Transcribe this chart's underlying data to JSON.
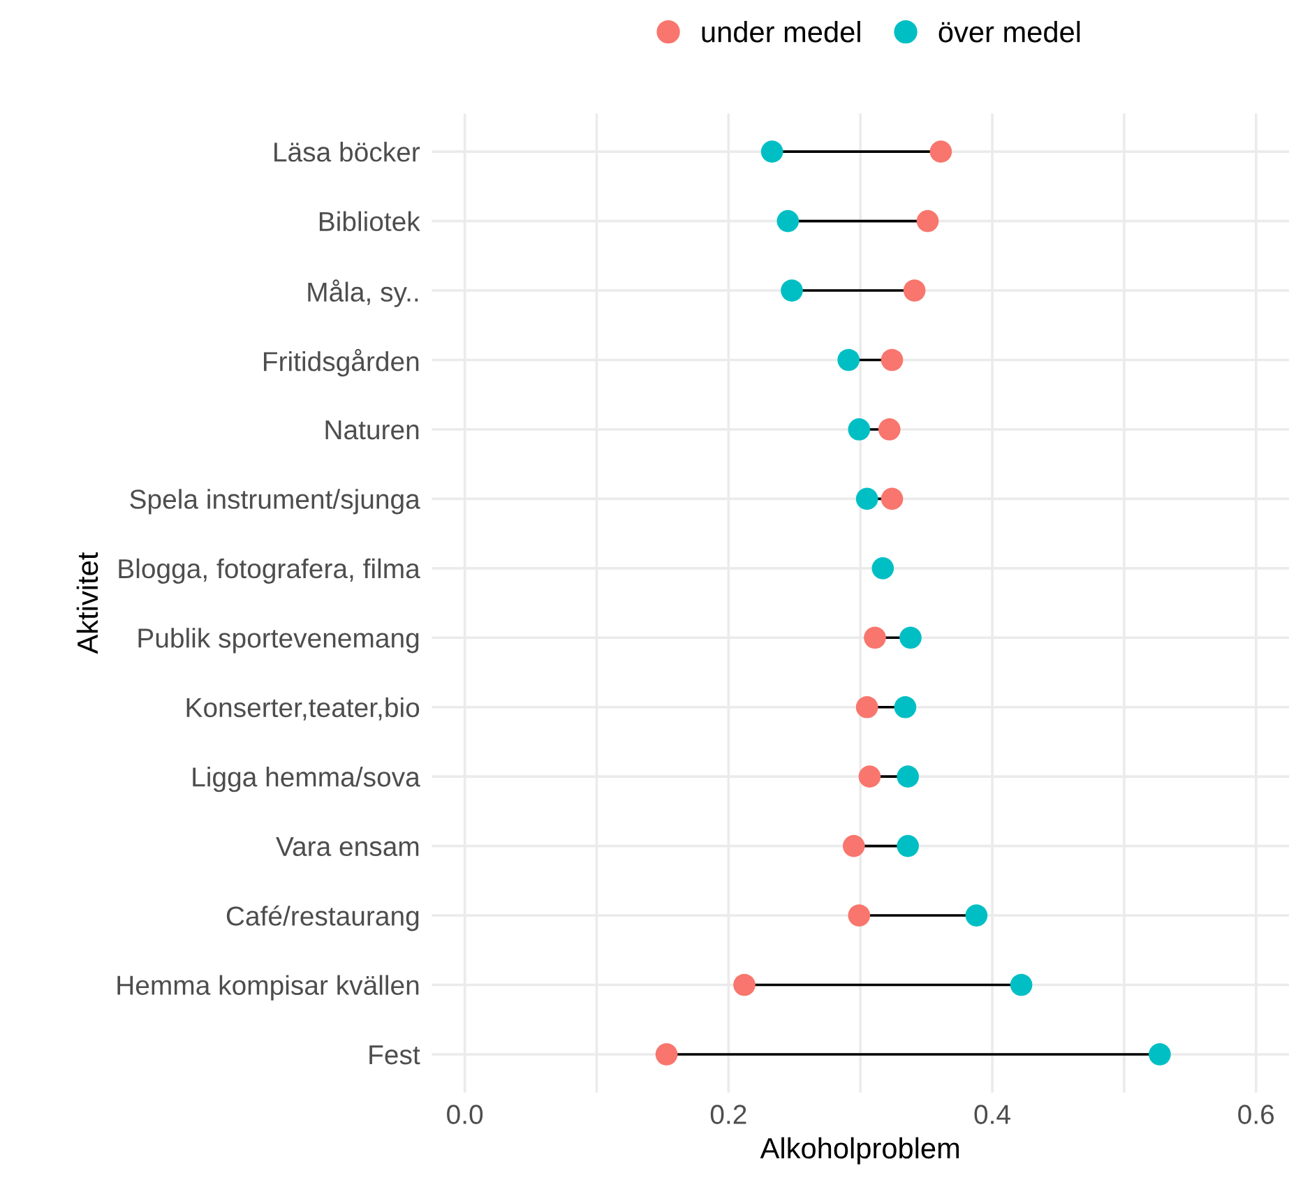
{
  "chart_data": {
    "type": "scatter",
    "orientation": "horizontal",
    "xlabel": "Alkoholproblem",
    "ylabel": "Aktivitet",
    "categories": [
      "Läsa böcker",
      "Bibliotek",
      "Måla, sy..",
      "Fritidsgården",
      "Naturen",
      "Spela instrument/sjunga",
      "Blogga, fotografera, filma",
      "Publik sportevenemang",
      "Konserter,teater,bio",
      "Ligga hemma/sova",
      "Vara ensam",
      "Café/restaurang",
      "Hemma kompisar kvällen",
      "Fest"
    ],
    "series": [
      {
        "name": "under medel",
        "color": "#f8766d",
        "values": [
          0.361,
          0.351,
          0.341,
          0.324,
          0.322,
          0.324,
          null,
          0.311,
          0.305,
          0.307,
          0.295,
          0.299,
          0.212,
          0.153
        ]
      },
      {
        "name": "över medel",
        "color": "#00bfc4",
        "values": [
          0.233,
          0.245,
          0.248,
          0.291,
          0.299,
          0.305,
          0.317,
          0.338,
          0.334,
          0.336,
          0.336,
          0.388,
          0.422,
          0.527
        ]
      }
    ],
    "xlim": [
      -0.025,
      0.625
    ],
    "xticks": [
      {
        "value": 0.0,
        "label": "0.0"
      },
      {
        "value": 0.1,
        "label": null
      },
      {
        "value": 0.2,
        "label": "0.2"
      },
      {
        "value": 0.3,
        "label": null
      },
      {
        "value": 0.4,
        "label": "0.4"
      },
      {
        "value": 0.5,
        "label": null
      },
      {
        "value": 0.6,
        "label": "0.6"
      }
    ],
    "grid": true,
    "legend": "top",
    "marker": "circle"
  }
}
